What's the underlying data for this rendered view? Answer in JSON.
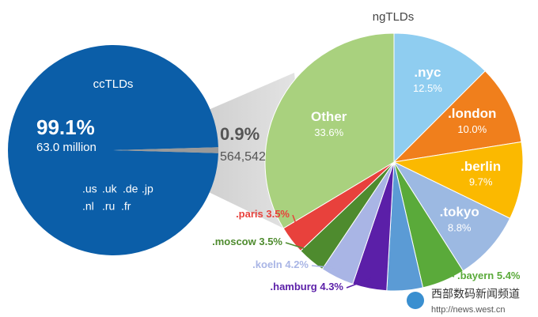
{
  "chart_data": [
    {
      "type": "pie",
      "title": "ccTLDs",
      "values": [
        99.1,
        0.9
      ],
      "value_labels": [
        "99.1%",
        "0.9%"
      ],
      "counts": [
        63000000,
        564542
      ],
      "count_labels": [
        "63.0 million",
        "564,542"
      ],
      "colors": [
        "#0b5ea8",
        "#9a9a9a"
      ],
      "domains": [
        ".us",
        ".uk",
        ".de",
        ".jp",
        ".nl",
        ".ru",
        ".fr"
      ]
    },
    {
      "type": "pie",
      "title": "ngTLDs",
      "categories": [
        ".nyc",
        ".london",
        ".berlin",
        ".tokyo",
        ".bayern",
        null,
        ".hamburg",
        ".koeln",
        ".moscow",
        ".paris",
        "Other"
      ],
      "values": [
        12.5,
        10.0,
        9.7,
        8.8,
        5.4,
        4.5,
        4.3,
        4.2,
        3.5,
        3.5,
        33.6
      ],
      "value_labels": [
        "12.5%",
        "10.0%",
        "9.7%",
        "8.8%",
        "5.4%",
        null,
        "4.3%",
        "4.2%",
        "3.5%",
        "3.5%",
        "33.6%"
      ],
      "colors": [
        "#8fcdf0",
        "#f07f1c",
        "#fbb900",
        "#9cb9e2",
        "#5aaa3a",
        "#5b9bd5",
        "#5b1fa8",
        "#a9b5e5",
        "#4e8b2e",
        "#e8413c",
        "#a9d17e"
      ]
    }
  ],
  "watermark": {
    "title": "西部数码新闻频道",
    "url": "http://news.west.cn"
  }
}
